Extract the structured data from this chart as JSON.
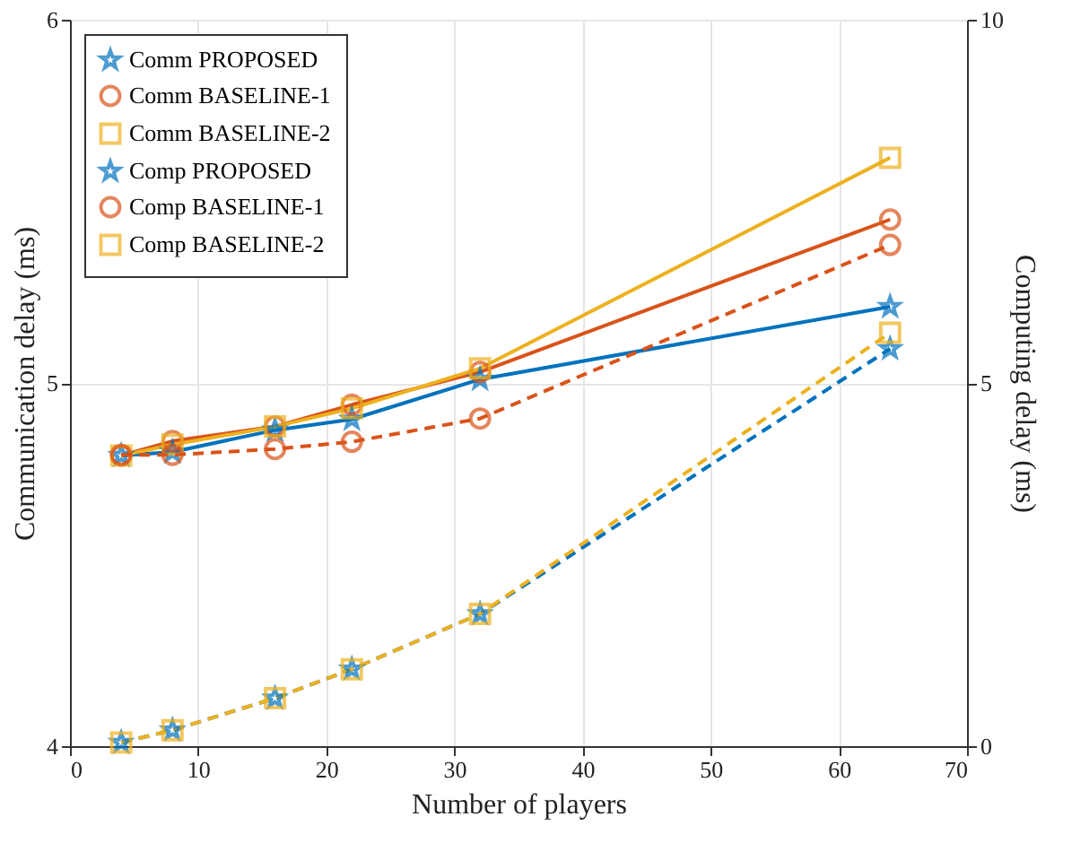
{
  "chart_data": {
    "type": "line",
    "xlabel": "Number of players",
    "ylabel": "Communication delay (ms)",
    "y2label": "Computing delay (ms)",
    "x": [
      4,
      8,
      16,
      22,
      32,
      64
    ],
    "xlim": [
      0,
      70
    ],
    "xticks": [
      0,
      10,
      20,
      30,
      40,
      50,
      60,
      70
    ],
    "ylim": [
      4,
      6
    ],
    "yticks": [
      4,
      5,
      6
    ],
    "y2lim": [
      0,
      10
    ],
    "y2ticks": [
      0,
      5,
      10
    ],
    "grid": true,
    "legend": "top left",
    "series": [
      {
        "name": "Comm PROPOSED",
        "color": "#0072bd",
        "marker": "star",
        "line_style": "solid",
        "values": [
          4.8,
          4.81,
          4.87,
          4.9,
          5.01,
          5.21
        ]
      },
      {
        "name": "Comm BASELINE-1",
        "color": "#d95319",
        "marker": "circle",
        "line_style": "solid",
        "values": [
          4.8,
          4.84,
          4.88,
          4.94,
          5.03,
          5.45
        ]
      },
      {
        "name": "Comm BASELINE-2",
        "color": "#edb120",
        "marker": "square",
        "line_style": "solid",
        "values": [
          4.8,
          4.83,
          4.88,
          4.93,
          5.04,
          5.62
        ]
      },
      {
        "name": "Comp PROPOSED",
        "color": "#0072bd",
        "marker": "star",
        "line_style": "dashed",
        "axis": "y2",
        "values": [
          0.05,
          0.22,
          0.66,
          1.06,
          1.82,
          5.47
        ]
      },
      {
        "name": "Comp BASELINE-1",
        "color": "#d95319",
        "marker": "circle",
        "line_style": "dashed",
        "axis": "y2",
        "values": [
          4.01,
          4.01,
          4.09,
          4.19,
          4.51,
          6.9
        ]
      },
      {
        "name": "Comp BASELINE-2",
        "color": "#edb120",
        "marker": "square",
        "line_style": "dashed",
        "axis": "y2",
        "values": [
          0.05,
          0.22,
          0.66,
          1.06,
          1.82,
          5.69
        ]
      }
    ]
  }
}
